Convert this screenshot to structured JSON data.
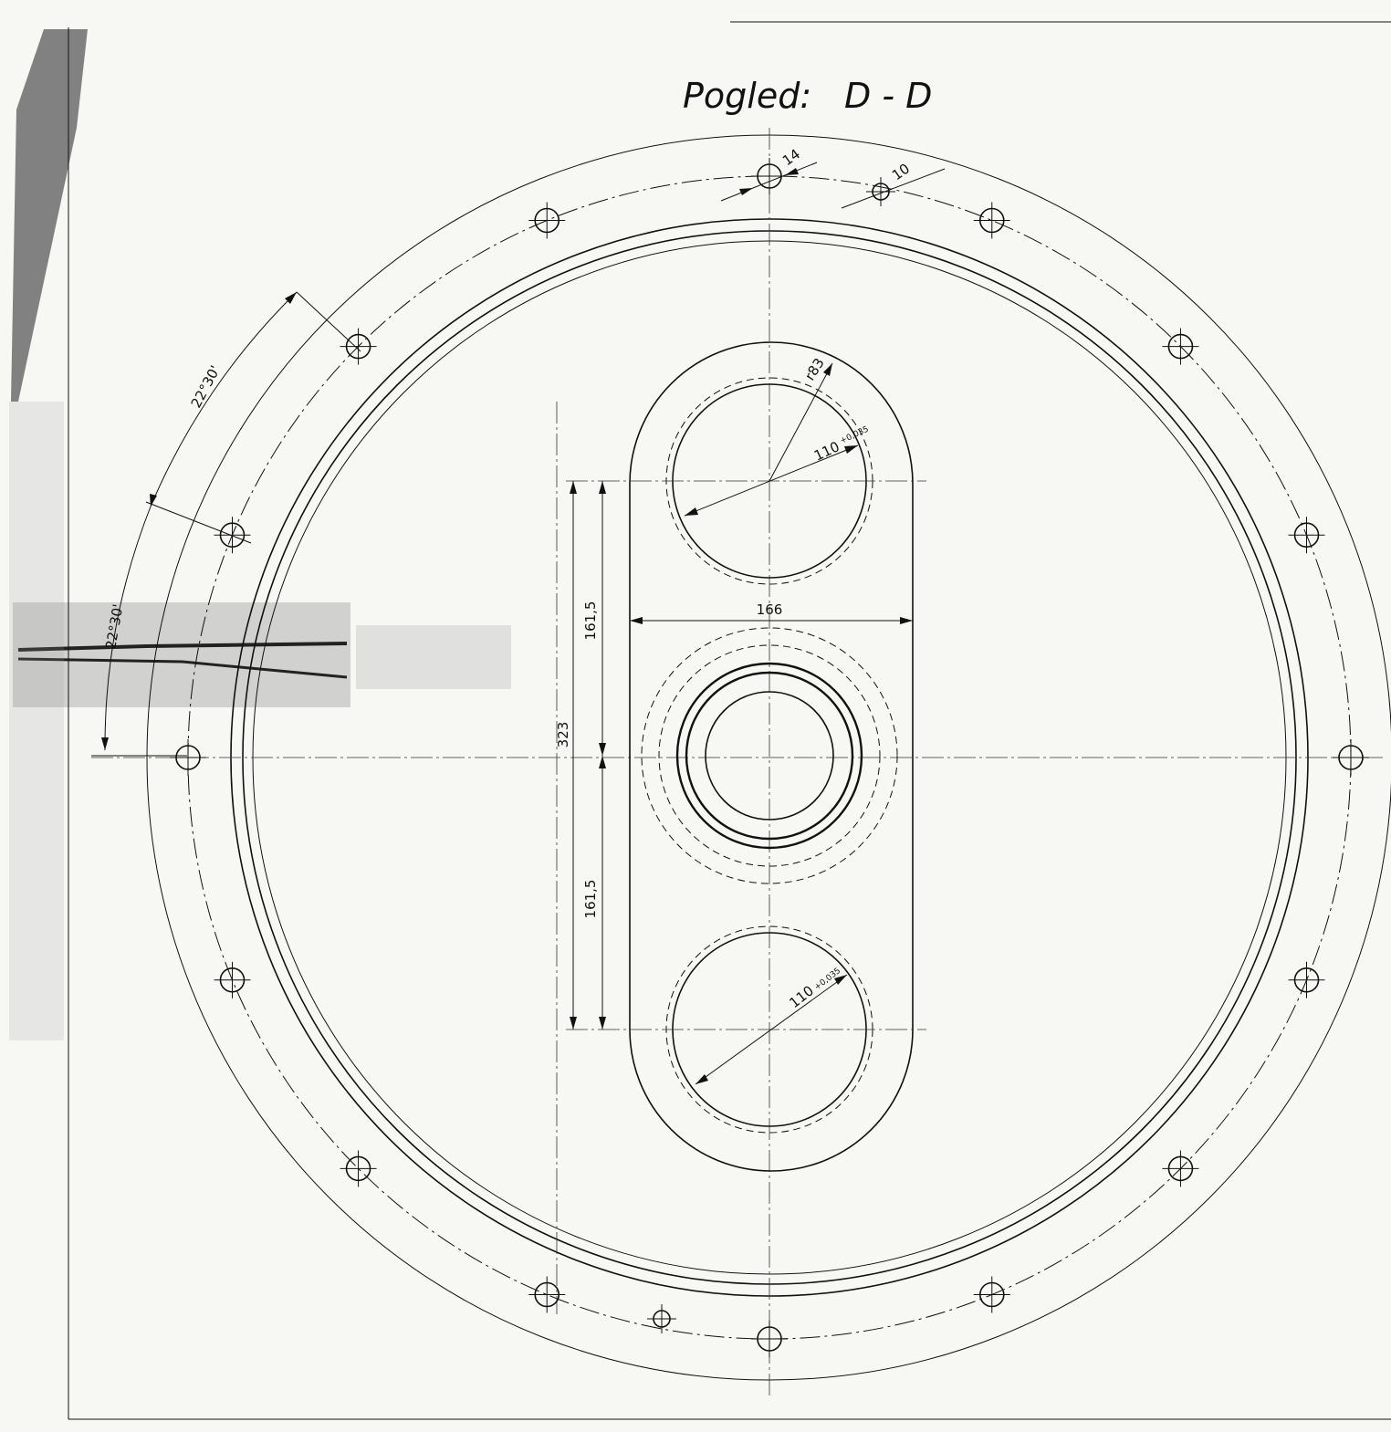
{
  "title": "Pogled:",
  "view_id": "D - D",
  "dimensions": {
    "bolt_hole_diameter": "14",
    "small_hole_diameter": "10",
    "boss_radius": "r83",
    "bore_diameter_top": "110",
    "bore_tolerance_top": "+0,035",
    "bore_diameter_bottom": "110",
    "bore_tolerance_bottom": "+0,035",
    "boss_width": "166",
    "half_distance_upper": "161,5",
    "half_distance_lower": "161,5",
    "total_distance": "323",
    "angle_upper": "22°30'",
    "angle_lower": "22°30'"
  },
  "colors": {
    "line": "#111111",
    "paper": "#f7f7f4",
    "smudge": "#555555"
  }
}
